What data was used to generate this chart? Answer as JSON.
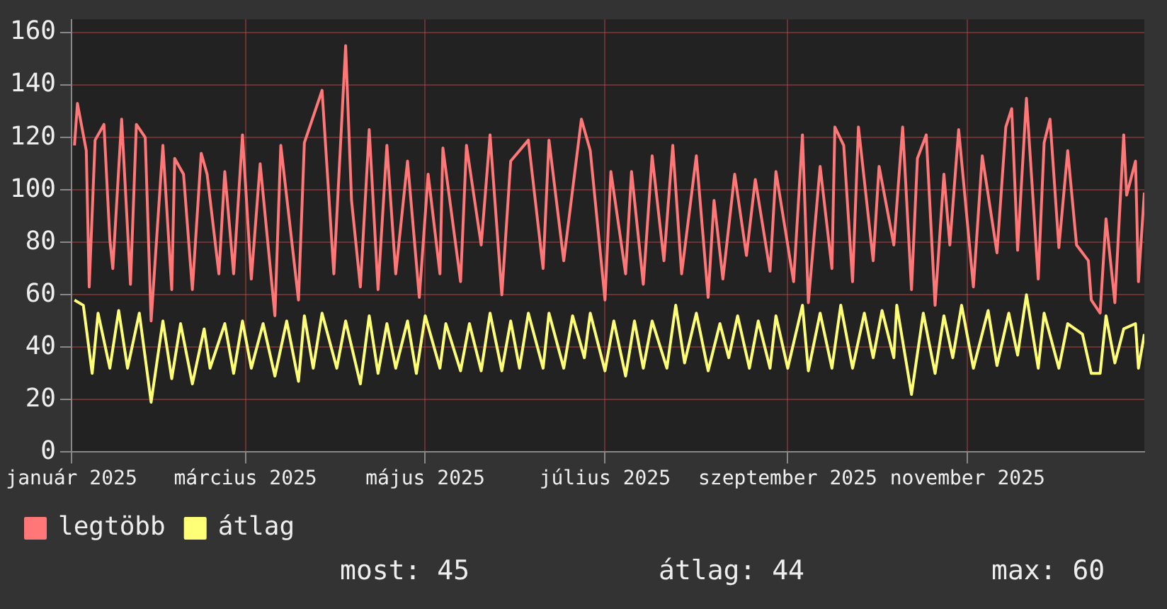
{
  "chart_data": {
    "type": "line",
    "xlim": [
      "2025-01-01",
      "2025-12-31"
    ],
    "xticks": [
      {
        "value": "2025-01-01",
        "label": "január 2025"
      },
      {
        "value": "2025-03-01",
        "label": "március 2025"
      },
      {
        "value": "2025-05-01",
        "label": "május 2025"
      },
      {
        "value": "2025-07-01",
        "label": "július 2025"
      },
      {
        "value": "2025-09-01",
        "label": "szeptember 2025"
      },
      {
        "value": "2025-11-01",
        "label": "november 2025"
      }
    ],
    "ylim": [
      0,
      165
    ],
    "yticks": [
      0,
      20,
      40,
      60,
      80,
      100,
      120,
      140,
      160
    ],
    "grid": true,
    "legend": "bottom",
    "marker": "none",
    "line_style": "solid",
    "annotations": [
      "most: 45",
      "átlag: 44",
      "max: 60"
    ],
    "series": [
      {
        "name": "legtöbb",
        "color": "#ff7777",
        "x": [
          "2025-01-02",
          "2025-01-03",
          "2025-01-06",
          "2025-01-07",
          "2025-01-09",
          "2025-01-12",
          "2025-01-14",
          "2025-01-15",
          "2025-01-18",
          "2025-01-21",
          "2025-01-23",
          "2025-01-26",
          "2025-01-28",
          "2025-02-01",
          "2025-02-04",
          "2025-02-05",
          "2025-02-08",
          "2025-02-11",
          "2025-02-14",
          "2025-02-16",
          "2025-02-20",
          "2025-02-22",
          "2025-02-25",
          "2025-02-28",
          "2025-03-03",
          "2025-03-06",
          "2025-03-11",
          "2025-03-13",
          "2025-03-19",
          "2025-03-21",
          "2025-03-27",
          "2025-03-31",
          "2025-04-04",
          "2025-04-06",
          "2025-04-09",
          "2025-04-12",
          "2025-04-15",
          "2025-04-18",
          "2025-04-21",
          "2025-04-25",
          "2025-04-29",
          "2025-05-02",
          "2025-05-06",
          "2025-05-07",
          "2025-05-13",
          "2025-05-15",
          "2025-05-20",
          "2025-05-23",
          "2025-05-27",
          "2025-05-30",
          "2025-06-05",
          "2025-06-10",
          "2025-06-12",
          "2025-06-17",
          "2025-06-23",
          "2025-06-26",
          "2025-07-01",
          "2025-07-03",
          "2025-07-08",
          "2025-07-10",
          "2025-07-14",
          "2025-07-17",
          "2025-07-21",
          "2025-07-24",
          "2025-07-27",
          "2025-08-01",
          "2025-08-05",
          "2025-08-07",
          "2025-08-10",
          "2025-08-14",
          "2025-08-18",
          "2025-08-21",
          "2025-08-26",
          "2025-08-28",
          "2025-09-03",
          "2025-09-06",
          "2025-09-08",
          "2025-09-12",
          "2025-09-16",
          "2025-09-17",
          "2025-09-20",
          "2025-09-23",
          "2025-09-25",
          "2025-09-30",
          "2025-10-02",
          "2025-10-07",
          "2025-10-10",
          "2025-10-13",
          "2025-10-15",
          "2025-10-18",
          "2025-10-21",
          "2025-10-24",
          "2025-10-26",
          "2025-10-29",
          "2025-11-03",
          "2025-11-06",
          "2025-11-11",
          "2025-11-14",
          "2025-11-16",
          "2025-11-18",
          "2025-11-21",
          "2025-11-25",
          "2025-11-27",
          "2025-11-29",
          "2025-12-02",
          "2025-12-05",
          "2025-12-08",
          "2025-12-12",
          "2025-12-13",
          "2025-12-16",
          "2025-12-18",
          "2025-12-21",
          "2025-12-24",
          "2025-12-25",
          "2025-12-28",
          "2025-12-29",
          "2025-12-31"
        ],
        "values": [
          117,
          133,
          115,
          63,
          119,
          125,
          81,
          70,
          127,
          64,
          125,
          120,
          50,
          117,
          62,
          112,
          106,
          62,
          114,
          106,
          68,
          107,
          68,
          121,
          66,
          110,
          52,
          117,
          58,
          118,
          138,
          68,
          155,
          96,
          63,
          123,
          62,
          117,
          68,
          111,
          59,
          106,
          68,
          116,
          65,
          117,
          79,
          121,
          60,
          111,
          119,
          70,
          119,
          73,
          127,
          115,
          58,
          107,
          68,
          107,
          64,
          113,
          73,
          117,
          68,
          113,
          59,
          96,
          66,
          106,
          75,
          104,
          69,
          107,
          65,
          121,
          57,
          109,
          70,
          124,
          117,
          65,
          124,
          73,
          109,
          79,
          124,
          62,
          112,
          121,
          56,
          106,
          79,
          123,
          63,
          113,
          76,
          124,
          131,
          77,
          135,
          66,
          118,
          127,
          78,
          115,
          79,
          73,
          58,
          53,
          89,
          57,
          121,
          98,
          111,
          65,
          99
        ]
      },
      {
        "name": "átlag",
        "color": "#ffff77",
        "x": [
          "2025-01-02",
          "2025-01-05",
          "2025-01-08",
          "2025-01-10",
          "2025-01-14",
          "2025-01-17",
          "2025-01-20",
          "2025-01-24",
          "2025-01-28",
          "2025-02-01",
          "2025-02-04",
          "2025-02-07",
          "2025-02-11",
          "2025-02-15",
          "2025-02-17",
          "2025-02-22",
          "2025-02-25",
          "2025-02-28",
          "2025-03-03",
          "2025-03-07",
          "2025-03-11",
          "2025-03-15",
          "2025-03-19",
          "2025-03-21",
          "2025-03-24",
          "2025-03-27",
          "2025-04-01",
          "2025-04-04",
          "2025-04-09",
          "2025-04-12",
          "2025-04-15",
          "2025-04-18",
          "2025-04-21",
          "2025-04-25",
          "2025-04-28",
          "2025-05-01",
          "2025-05-06",
          "2025-05-08",
          "2025-05-13",
          "2025-05-16",
          "2025-05-20",
          "2025-05-23",
          "2025-05-27",
          "2025-05-30",
          "2025-06-02",
          "2025-06-05",
          "2025-06-10",
          "2025-06-12",
          "2025-06-17",
          "2025-06-20",
          "2025-06-24",
          "2025-06-26",
          "2025-07-01",
          "2025-07-04",
          "2025-07-08",
          "2025-07-11",
          "2025-07-14",
          "2025-07-17",
          "2025-07-22",
          "2025-07-25",
          "2025-07-28",
          "2025-08-01",
          "2025-08-05",
          "2025-08-09",
          "2025-08-12",
          "2025-08-15",
          "2025-08-19",
          "2025-08-22",
          "2025-08-26",
          "2025-08-28",
          "2025-09-01",
          "2025-09-06",
          "2025-09-08",
          "2025-09-12",
          "2025-09-16",
          "2025-09-19",
          "2025-09-23",
          "2025-09-27",
          "2025-09-30",
          "2025-10-03",
          "2025-10-07",
          "2025-10-08",
          "2025-10-13",
          "2025-10-17",
          "2025-10-21",
          "2025-10-24",
          "2025-10-27",
          "2025-10-30",
          "2025-11-03",
          "2025-11-08",
          "2025-11-11",
          "2025-11-15",
          "2025-11-18",
          "2025-11-21",
          "2025-11-25",
          "2025-11-27",
          "2025-12-02",
          "2025-12-05",
          "2025-12-10",
          "2025-12-13",
          "2025-12-16",
          "2025-12-18",
          "2025-12-21",
          "2025-12-24",
          "2025-12-28",
          "2025-12-29",
          "2025-12-31"
        ],
        "values": [
          58,
          56,
          30,
          53,
          32,
          54,
          32,
          53,
          19,
          50,
          28,
          49,
          26,
          47,
          32,
          49,
          30,
          50,
          32,
          49,
          29,
          50,
          27,
          52,
          32,
          53,
          32,
          50,
          26,
          52,
          30,
          49,
          32,
          50,
          30,
          52,
          32,
          49,
          31,
          49,
          31,
          53,
          31,
          50,
          32,
          53,
          32,
          53,
          32,
          52,
          36,
          53,
          31,
          50,
          29,
          50,
          32,
          50,
          32,
          56,
          34,
          53,
          31,
          49,
          36,
          52,
          32,
          50,
          32,
          52,
          32,
          56,
          31,
          53,
          32,
          56,
          32,
          53,
          36,
          54,
          36,
          56,
          22,
          53,
          30,
          52,
          36,
          56,
          32,
          54,
          33,
          53,
          37,
          60,
          32,
          53,
          32,
          49,
          45,
          30,
          30,
          52,
          34,
          47,
          49,
          32,
          45
        ]
      }
    ]
  }
}
